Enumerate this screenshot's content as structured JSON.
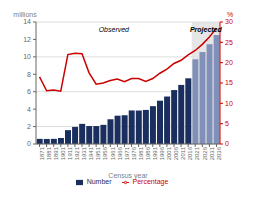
{
  "chart_data": {
    "type": "bar",
    "xlabel": "Census year",
    "ylabel": "millions",
    "y2label": "%",
    "categories": [
      "1871",
      "1881",
      "1891",
      "1901",
      "1911",
      "1921",
      "1931",
      "1941",
      "1951",
      "1956",
      "1961",
      "1966",
      "1971",
      "1976",
      "1981",
      "1986",
      "1991",
      "1996",
      "2001",
      "2006",
      "2011",
      "2016",
      "2021",
      "2026",
      "2031",
      "2036"
    ],
    "series": [
      {
        "name": "Number",
        "type": "bar",
        "color": "#1a2f5e",
        "colors": [
          "#1a2f5e",
          "#1a2f5e",
          "#1a2f5e",
          "#1a2f5e",
          "#1a2f5e",
          "#1a2f5e",
          "#1a2f5e",
          "#1a2f5e",
          "#1a2f5e",
          "#1a2f5e",
          "#1a2f5e",
          "#1a2f5e",
          "#1a2f5e",
          "#1a2f5e",
          "#1a2f5e",
          "#1a2f5e",
          "#1a2f5e",
          "#1a2f5e",
          "#1a2f5e",
          "#1a2f5e",
          "#1a2f5e",
          "#1a2f5e",
          "#8090b8",
          "#8090b8",
          "#8090b8",
          "#8090b8"
        ],
        "values": [
          0.59,
          0.58,
          0.59,
          0.69,
          1.59,
          1.96,
          2.31,
          2.06,
          2.06,
          2.2,
          2.84,
          3.25,
          3.3,
          3.85,
          3.84,
          3.91,
          4.34,
          4.97,
          5.45,
          6.19,
          6.78,
          7.54,
          9.72,
          10.55,
          11.45,
          12.5
        ]
      },
      {
        "name": "Percentage",
        "type": "line",
        "axis": "y2",
        "color": "#cc0000",
        "values": [
          16.5,
          13.1,
          13.3,
          13.0,
          22.0,
          22.3,
          22.2,
          17.5,
          14.7,
          15.0,
          15.6,
          16.0,
          15.3,
          16.1,
          16.1,
          15.4,
          16.1,
          17.4,
          18.4,
          19.8,
          20.6,
          21.9,
          23.0,
          24.5,
          26.3,
          28.5
        ]
      }
    ],
    "annotations": [
      "Observed",
      "Projected"
    ],
    "ylim": [
      0,
      14
    ],
    "yticks": [
      0,
      2,
      4,
      6,
      8,
      10,
      12,
      14
    ],
    "y2lim": [
      0,
      30
    ],
    "y2ticks": [
      0,
      5,
      10,
      15,
      20,
      25,
      30
    ],
    "grid": true,
    "legend": "bottom"
  }
}
